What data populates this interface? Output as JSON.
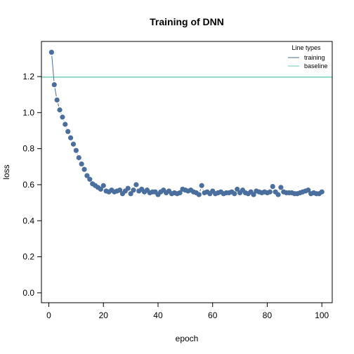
{
  "chart_data": {
    "type": "scatter",
    "title": "Training of DNN",
    "xlabel": "epoch",
    "ylabel": "loss",
    "xlim": [
      -2.7,
      103.8
    ],
    "ylim": [
      -0.055,
      1.395
    ],
    "xticks": [
      0,
      20,
      40,
      60,
      80,
      100
    ],
    "yticks": [
      0.0,
      0.2,
      0.4,
      0.6,
      0.8,
      1.0,
      1.2
    ],
    "ytick_labels": [
      "0.0",
      "0.2",
      "0.4",
      "0.6",
      "0.8",
      "1.0",
      "1.2"
    ],
    "legend": {
      "title": "Line types",
      "position": "top-right",
      "items": [
        {
          "label": "training",
          "color": "#4a6f9e"
        },
        {
          "label": "baseline",
          "color": "#66ccb2"
        }
      ]
    },
    "baseline": {
      "name": "baseline",
      "value": 1.197,
      "color": "#66ccb2"
    },
    "series": [
      {
        "name": "training",
        "color": "#4a6f9e",
        "x": [
          1,
          2,
          3,
          4,
          5,
          6,
          7,
          8,
          9,
          10,
          11,
          12,
          13,
          14,
          15,
          16,
          17,
          18,
          19,
          20,
          21,
          22,
          23,
          24,
          25,
          26,
          27,
          28,
          29,
          30,
          31,
          32,
          33,
          34,
          35,
          36,
          37,
          38,
          39,
          40,
          41,
          42,
          43,
          44,
          45,
          46,
          47,
          48,
          49,
          50,
          51,
          52,
          53,
          54,
          55,
          56,
          57,
          58,
          59,
          60,
          61,
          62,
          63,
          64,
          65,
          66,
          67,
          68,
          69,
          70,
          71,
          72,
          73,
          74,
          75,
          76,
          77,
          78,
          79,
          80,
          81,
          82,
          83,
          84,
          85,
          86,
          87,
          88,
          89,
          90,
          91,
          92,
          93,
          94,
          95,
          96,
          97,
          98,
          99,
          100
        ],
        "y": [
          1.335,
          1.155,
          1.07,
          1.015,
          0.975,
          0.935,
          0.895,
          0.86,
          0.825,
          0.79,
          0.75,
          0.715,
          0.685,
          0.65,
          0.63,
          0.605,
          0.595,
          0.585,
          0.575,
          0.595,
          0.565,
          0.56,
          0.57,
          0.56,
          0.565,
          0.57,
          0.55,
          0.565,
          0.58,
          0.55,
          0.57,
          0.6,
          0.565,
          0.575,
          0.56,
          0.57,
          0.555,
          0.56,
          0.56,
          0.545,
          0.56,
          0.57,
          0.555,
          0.565,
          0.55,
          0.555,
          0.55,
          0.555,
          0.575,
          0.57,
          0.565,
          0.57,
          0.56,
          0.555,
          0.545,
          0.595,
          0.555,
          0.56,
          0.55,
          0.565,
          0.55,
          0.555,
          0.56,
          0.55,
          0.555,
          0.555,
          0.56,
          0.55,
          0.575,
          0.555,
          0.57,
          0.555,
          0.55,
          0.56,
          0.545,
          0.565,
          0.56,
          0.555,
          0.56,
          0.555,
          0.56,
          0.59,
          0.56,
          0.545,
          0.585,
          0.56,
          0.555,
          0.555,
          0.555,
          0.55,
          0.55,
          0.555,
          0.56,
          0.565,
          0.57,
          0.55,
          0.555,
          0.55,
          0.55,
          0.56
        ]
      }
    ]
  }
}
